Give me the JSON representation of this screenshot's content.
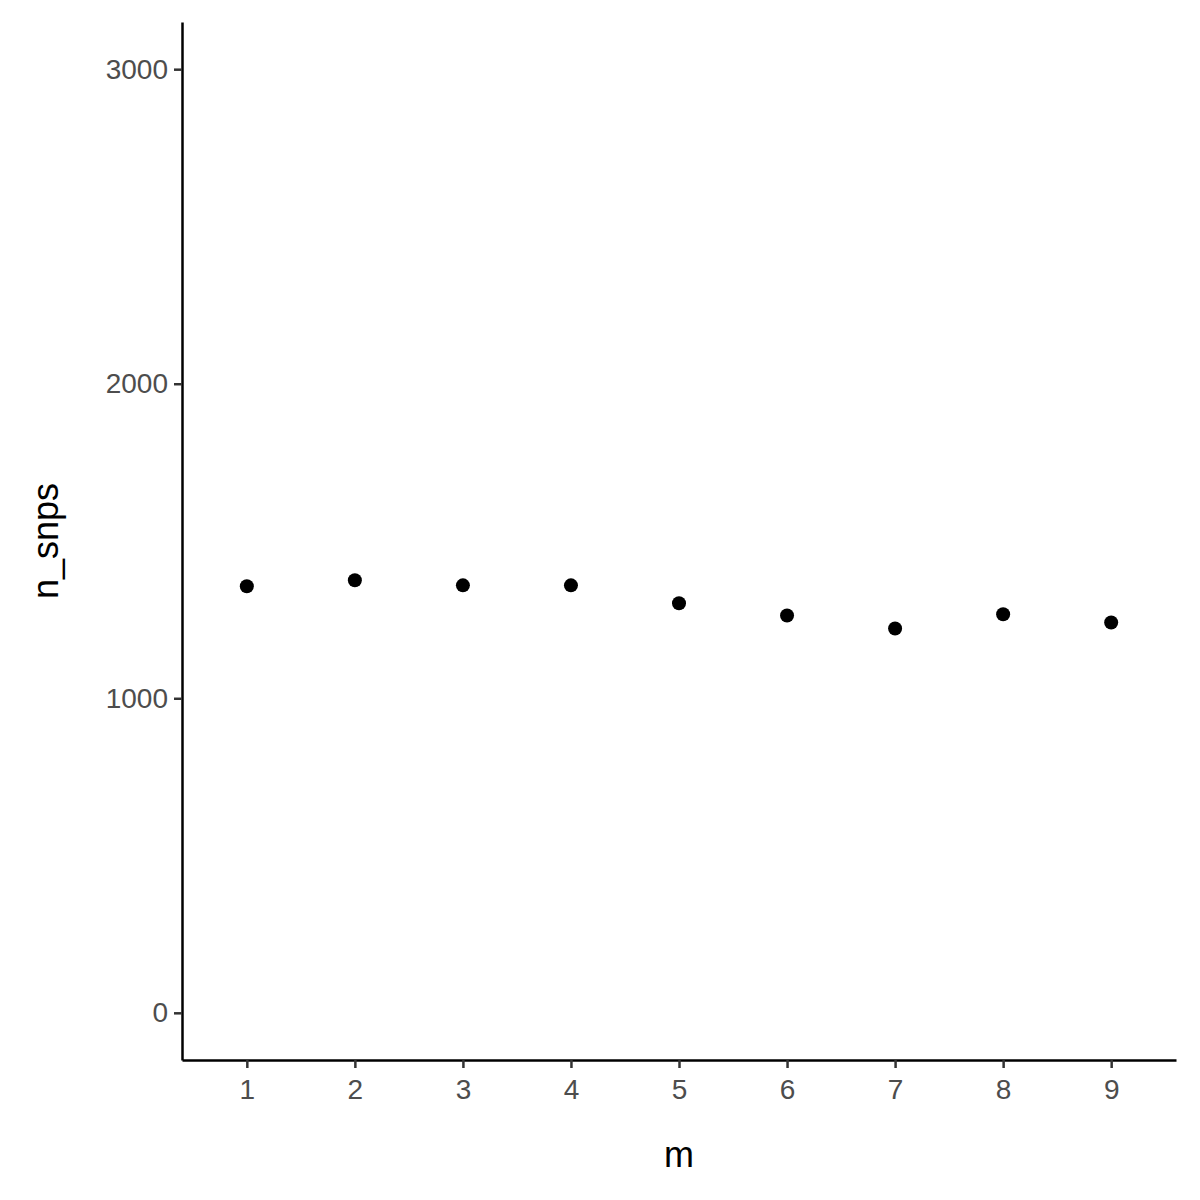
{
  "chart_data": {
    "type": "scatter",
    "x": [
      1,
      2,
      3,
      4,
      5,
      6,
      7,
      8,
      9
    ],
    "values": [
      1356,
      1375,
      1359,
      1359,
      1302,
      1263,
      1222,
      1267,
      1241
    ],
    "xlabel": "m",
    "ylabel": "n_snps",
    "xlim": [
      0.4,
      9.6
    ],
    "ylim": [
      -150,
      3150
    ],
    "xticks": [
      1,
      2,
      3,
      4,
      5,
      6,
      7,
      8,
      9
    ],
    "yticks": [
      0,
      1000,
      2000,
      3000
    ],
    "color": "#000000",
    "grid": false
  }
}
